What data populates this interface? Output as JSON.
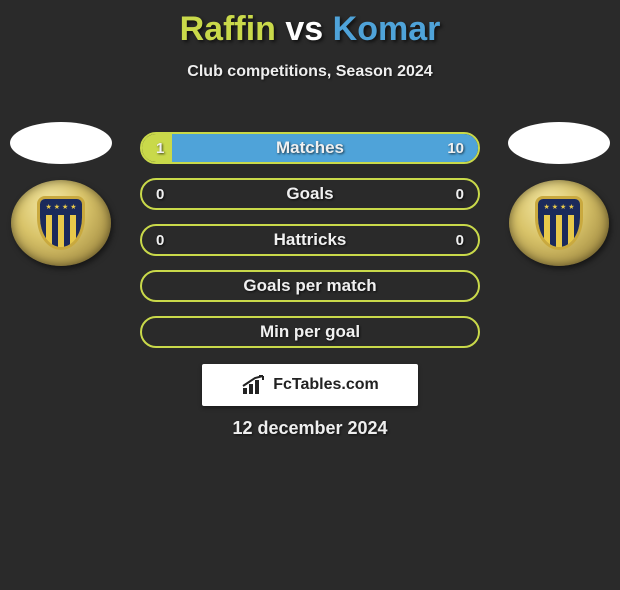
{
  "background_color": "#2a2a2a",
  "title": {
    "player1": "Raffin",
    "vs": "vs",
    "player2": "Komar",
    "player1_color": "#c9d94a",
    "vs_color": "#ffffff",
    "player2_color": "#4fa3d9",
    "fontsize": 34
  },
  "subtitle": {
    "text": "Club competitions, Season 2024",
    "fontsize": 16
  },
  "player_left": {
    "oval_color": "#ffffff",
    "badge_colors": {
      "gold": "#d9c46a",
      "navy": "#1b2a5b",
      "yellow": "#e8c94a"
    }
  },
  "player_right": {
    "oval_color": "#ffffff",
    "badge_colors": {
      "gold": "#d9c46a",
      "navy": "#1b2a5b",
      "yellow": "#e8c94a"
    }
  },
  "bar_style": {
    "height": 32,
    "radius": 16,
    "label_fontsize": 17,
    "value_fontsize": 15,
    "left_color": "#c9d94a",
    "right_color": "#4fa3d9",
    "border_color": "#c9d94a",
    "border_width": 2
  },
  "bars": [
    {
      "label": "Matches",
      "left_val": "1",
      "right_val": "10",
      "left_pct": 9,
      "right_pct": 91,
      "show_values": true,
      "filled": true
    },
    {
      "label": "Goals",
      "left_val": "0",
      "right_val": "0",
      "left_pct": 0,
      "right_pct": 0,
      "show_values": true,
      "filled": false
    },
    {
      "label": "Hattricks",
      "left_val": "0",
      "right_val": "0",
      "left_pct": 0,
      "right_pct": 0,
      "show_values": true,
      "filled": false
    },
    {
      "label": "Goals per match",
      "left_val": "",
      "right_val": "",
      "left_pct": 0,
      "right_pct": 0,
      "show_values": false,
      "filled": false
    },
    {
      "label": "Min per goal",
      "left_val": "",
      "right_val": "",
      "left_pct": 0,
      "right_pct": 0,
      "show_values": false,
      "filled": false
    }
  ],
  "attribution": {
    "text": "FcTables.com",
    "bg": "#ffffff",
    "text_color": "#222222",
    "fontsize": 16
  },
  "date": {
    "text": "12 december 2024",
    "fontsize": 18
  }
}
